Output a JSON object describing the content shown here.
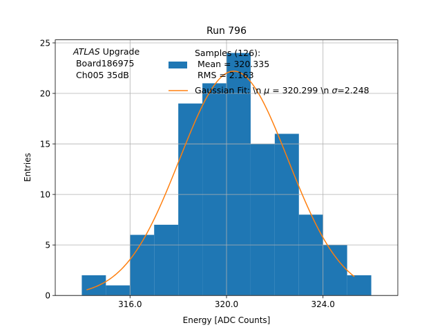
{
  "chart_data": {
    "type": "bar",
    "title": "Run 796",
    "xlabel": "Energy [ADC Counts]",
    "ylabel": "Entries",
    "xlim": [
      312.9,
      327.1
    ],
    "ylim": [
      0,
      25.3
    ],
    "xticks": [
      316.0,
      320.0,
      324.0
    ],
    "xtick_labels": [
      "316.0",
      "320.0",
      "324.0"
    ],
    "yticks": [
      0,
      5,
      10,
      15,
      20,
      25
    ],
    "ytick_labels": [
      "0",
      "5",
      "10",
      "15",
      "20",
      "25"
    ],
    "grid": true,
    "bin_width": 1.0,
    "bin_lefts": [
      314,
      315,
      316,
      317,
      318,
      319,
      320,
      321,
      322,
      323,
      324,
      325
    ],
    "values": [
      2,
      1,
      6,
      7,
      19,
      21,
      24,
      15,
      16,
      8,
      5,
      2
    ],
    "fit": {
      "name": "Gaussian Fit",
      "amplitude": 22.2,
      "mu": 320.299,
      "sigma": 2.248,
      "x_range": [
        314.2,
        325.3
      ]
    },
    "legend": {
      "placement": "top-right",
      "hist_label": [
        "Samples (126):",
        " Mean = 320.335",
        " RMS = 2.163"
      ],
      "fit_label": "Gaussian Fit: \\n $\\mu$ = 320.299 \\n $\\sigma$=2.248"
    },
    "annotation": {
      "atlas": "ATLAS",
      "upgrade": " Upgrade",
      "board": " Board186975",
      "channel": " Ch005 35dB"
    },
    "colors": {
      "hist": "#1f77b4",
      "fit": "#ff7f0e",
      "grid": "#b0b0b0"
    }
  }
}
